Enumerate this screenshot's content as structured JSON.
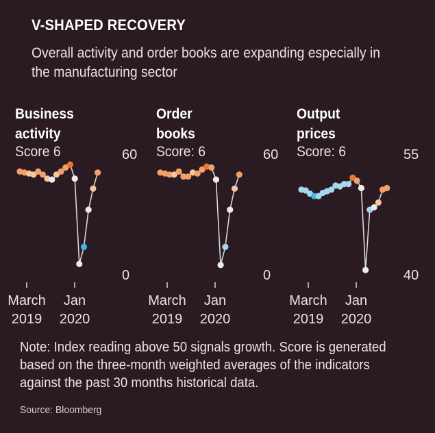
{
  "header": {
    "title": "V-SHAPED RECOVERY",
    "subtitle": "Overall activity and order books are expanding especially in the manufacturing sector"
  },
  "panels": [
    {
      "title_line1": "Business",
      "title_line2": "activity",
      "score": "Score 6"
    },
    {
      "title_line1": "Order",
      "title_line2": "books",
      "score": "Score: 6"
    },
    {
      "title_line1": "Output",
      "title_line2": "prices",
      "score": "Score: 6"
    }
  ],
  "footer": {
    "note": "Note: Index reading above 50 signals growth. Score is generated based on the three-month weighted averages of the indicators against the past 30 months historical data.",
    "source": "Source: Bloomberg"
  },
  "colors": {
    "background": "#2a1a22",
    "line": "#d9d9d9",
    "dark_orange": "#e8762c",
    "orange": "#f1a067",
    "light_orange": "#f7c7a0",
    "white": "#ecebee",
    "light_blue": "#a8d6ee",
    "blue": "#3fb3e6"
  },
  "chart_data": [
    {
      "type": "line",
      "panel": "Business activity",
      "x_tick_labels": [
        {
          "line1": "March",
          "line2": "2019"
        },
        {
          "line1": "Jan",
          "line2": "2020"
        }
      ],
      "y_tick_labels": [
        "60",
        "0"
      ],
      "ylim": [
        0,
        60
      ],
      "values": [
        51,
        50.5,
        50,
        49.5,
        51,
        49.5,
        47.5,
        47,
        49.5,
        51,
        53,
        54.5,
        47.5,
        5,
        13.5,
        32,
        42.5,
        50.5
      ],
      "point_colors": [
        "orange",
        "orange",
        "light_orange",
        "light_orange",
        "orange",
        "orange",
        "light_orange",
        "white",
        "light_orange",
        "orange",
        "orange",
        "dark_orange",
        "white",
        "white",
        "blue",
        "white",
        "light_orange",
        "orange"
      ]
    },
    {
      "type": "line",
      "panel": "Order books",
      "x_tick_labels": [
        {
          "line1": "March",
          "line2": "2019"
        },
        {
          "line1": "Jan",
          "line2": "2020"
        }
      ],
      "y_tick_labels": [
        "60",
        "0"
      ],
      "ylim": [
        0,
        60
      ],
      "values": [
        50.5,
        50,
        49.5,
        49.5,
        51,
        48.5,
        48.5,
        50.5,
        50,
        52,
        53.5,
        53,
        47,
        4.5,
        13.5,
        32,
        42.5,
        49.5
      ],
      "point_colors": [
        "orange",
        "orange",
        "orange",
        "light_orange",
        "orange",
        "orange",
        "orange",
        "light_orange",
        "orange",
        "orange",
        "dark_orange",
        "orange",
        "white",
        "white",
        "light_blue",
        "white",
        "light_orange",
        "orange"
      ]
    },
    {
      "type": "line",
      "panel": "Output prices",
      "x_tick_labels": [
        {
          "line1": "March",
          "line2": "2019"
        },
        {
          "line1": "Jan",
          "line2": "2020"
        }
      ],
      "y_tick_labels": [
        "55",
        "40"
      ],
      "ylim": [
        40,
        55
      ],
      "values": [
        50.5,
        50.4,
        50,
        49.7,
        49.7,
        50.1,
        50.3,
        50.5,
        51,
        50.9,
        51.2,
        51.2,
        52,
        51.6,
        50.7,
        40.5,
        48,
        48.3,
        48.9,
        50.5,
        50.7
      ],
      "point_colors": [
        "light_blue",
        "light_blue",
        "light_blue",
        "blue",
        "light_blue",
        "light_blue",
        "light_blue",
        "light_blue",
        "light_blue",
        "light_blue",
        "light_blue",
        "light_blue",
        "dark_orange",
        "orange",
        "white",
        "white",
        "light_blue",
        "white",
        "light_orange",
        "orange",
        "orange"
      ]
    }
  ]
}
